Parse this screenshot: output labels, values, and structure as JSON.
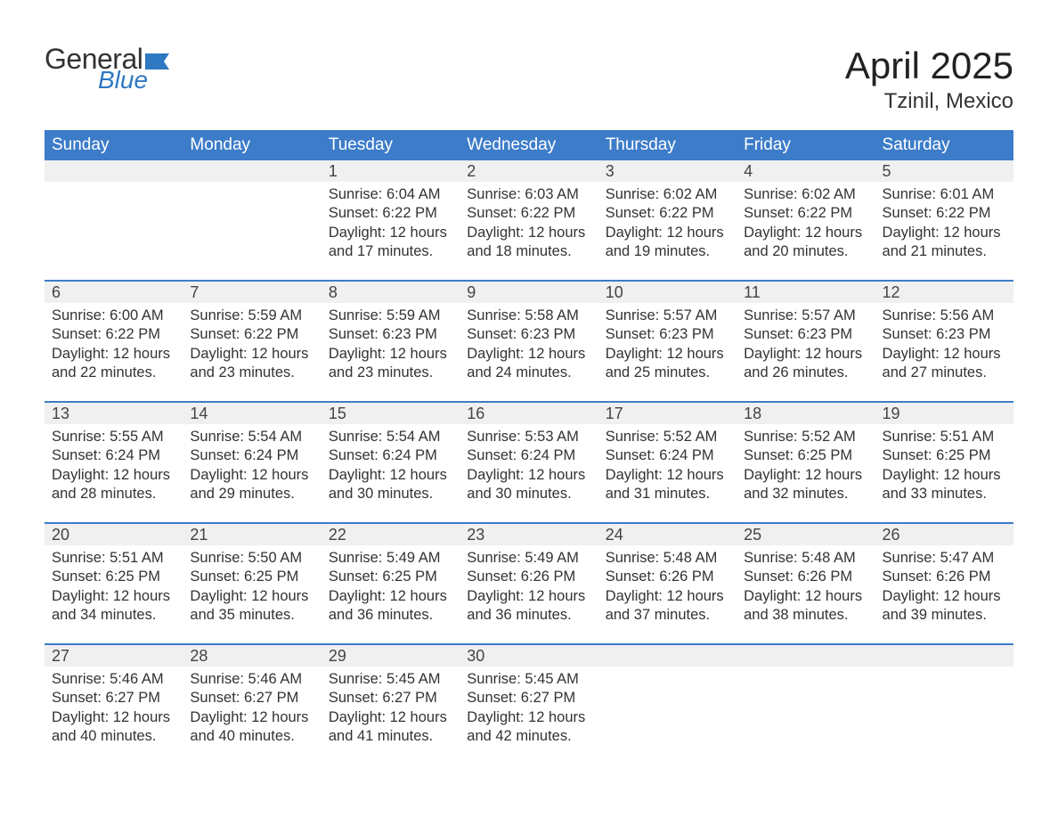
{
  "brand": {
    "general_text": "General",
    "blue_text": "Blue",
    "flag_color": "#2f78c2",
    "text_color": "#333333"
  },
  "title": {
    "month": "April 2025",
    "location": "Tzinil, Mexico"
  },
  "colors": {
    "header_bg": "#3d7cc9",
    "header_text": "#ffffff",
    "week_divider": "#3d7cc9",
    "daynum_bg": "#f0f0f0",
    "body_text": "#333333",
    "page_bg": "#ffffff"
  },
  "day_names": [
    "Sunday",
    "Monday",
    "Tuesday",
    "Wednesday",
    "Thursday",
    "Friday",
    "Saturday"
  ],
  "weeks": [
    [
      null,
      null,
      {
        "n": "1",
        "sunrise": "Sunrise: 6:04 AM",
        "sunset": "Sunset: 6:22 PM",
        "dl1": "Daylight: 12 hours",
        "dl2": "and 17 minutes."
      },
      {
        "n": "2",
        "sunrise": "Sunrise: 6:03 AM",
        "sunset": "Sunset: 6:22 PM",
        "dl1": "Daylight: 12 hours",
        "dl2": "and 18 minutes."
      },
      {
        "n": "3",
        "sunrise": "Sunrise: 6:02 AM",
        "sunset": "Sunset: 6:22 PM",
        "dl1": "Daylight: 12 hours",
        "dl2": "and 19 minutes."
      },
      {
        "n": "4",
        "sunrise": "Sunrise: 6:02 AM",
        "sunset": "Sunset: 6:22 PM",
        "dl1": "Daylight: 12 hours",
        "dl2": "and 20 minutes."
      },
      {
        "n": "5",
        "sunrise": "Sunrise: 6:01 AM",
        "sunset": "Sunset: 6:22 PM",
        "dl1": "Daylight: 12 hours",
        "dl2": "and 21 minutes."
      }
    ],
    [
      {
        "n": "6",
        "sunrise": "Sunrise: 6:00 AM",
        "sunset": "Sunset: 6:22 PM",
        "dl1": "Daylight: 12 hours",
        "dl2": "and 22 minutes."
      },
      {
        "n": "7",
        "sunrise": "Sunrise: 5:59 AM",
        "sunset": "Sunset: 6:22 PM",
        "dl1": "Daylight: 12 hours",
        "dl2": "and 23 minutes."
      },
      {
        "n": "8",
        "sunrise": "Sunrise: 5:59 AM",
        "sunset": "Sunset: 6:23 PM",
        "dl1": "Daylight: 12 hours",
        "dl2": "and 23 minutes."
      },
      {
        "n": "9",
        "sunrise": "Sunrise: 5:58 AM",
        "sunset": "Sunset: 6:23 PM",
        "dl1": "Daylight: 12 hours",
        "dl2": "and 24 minutes."
      },
      {
        "n": "10",
        "sunrise": "Sunrise: 5:57 AM",
        "sunset": "Sunset: 6:23 PM",
        "dl1": "Daylight: 12 hours",
        "dl2": "and 25 minutes."
      },
      {
        "n": "11",
        "sunrise": "Sunrise: 5:57 AM",
        "sunset": "Sunset: 6:23 PM",
        "dl1": "Daylight: 12 hours",
        "dl2": "and 26 minutes."
      },
      {
        "n": "12",
        "sunrise": "Sunrise: 5:56 AM",
        "sunset": "Sunset: 6:23 PM",
        "dl1": "Daylight: 12 hours",
        "dl2": "and 27 minutes."
      }
    ],
    [
      {
        "n": "13",
        "sunrise": "Sunrise: 5:55 AM",
        "sunset": "Sunset: 6:24 PM",
        "dl1": "Daylight: 12 hours",
        "dl2": "and 28 minutes."
      },
      {
        "n": "14",
        "sunrise": "Sunrise: 5:54 AM",
        "sunset": "Sunset: 6:24 PM",
        "dl1": "Daylight: 12 hours",
        "dl2": "and 29 minutes."
      },
      {
        "n": "15",
        "sunrise": "Sunrise: 5:54 AM",
        "sunset": "Sunset: 6:24 PM",
        "dl1": "Daylight: 12 hours",
        "dl2": "and 30 minutes."
      },
      {
        "n": "16",
        "sunrise": "Sunrise: 5:53 AM",
        "sunset": "Sunset: 6:24 PM",
        "dl1": "Daylight: 12 hours",
        "dl2": "and 30 minutes."
      },
      {
        "n": "17",
        "sunrise": "Sunrise: 5:52 AM",
        "sunset": "Sunset: 6:24 PM",
        "dl1": "Daylight: 12 hours",
        "dl2": "and 31 minutes."
      },
      {
        "n": "18",
        "sunrise": "Sunrise: 5:52 AM",
        "sunset": "Sunset: 6:25 PM",
        "dl1": "Daylight: 12 hours",
        "dl2": "and 32 minutes."
      },
      {
        "n": "19",
        "sunrise": "Sunrise: 5:51 AM",
        "sunset": "Sunset: 6:25 PM",
        "dl1": "Daylight: 12 hours",
        "dl2": "and 33 minutes."
      }
    ],
    [
      {
        "n": "20",
        "sunrise": "Sunrise: 5:51 AM",
        "sunset": "Sunset: 6:25 PM",
        "dl1": "Daylight: 12 hours",
        "dl2": "and 34 minutes."
      },
      {
        "n": "21",
        "sunrise": "Sunrise: 5:50 AM",
        "sunset": "Sunset: 6:25 PM",
        "dl1": "Daylight: 12 hours",
        "dl2": "and 35 minutes."
      },
      {
        "n": "22",
        "sunrise": "Sunrise: 5:49 AM",
        "sunset": "Sunset: 6:25 PM",
        "dl1": "Daylight: 12 hours",
        "dl2": "and 36 minutes."
      },
      {
        "n": "23",
        "sunrise": "Sunrise: 5:49 AM",
        "sunset": "Sunset: 6:26 PM",
        "dl1": "Daylight: 12 hours",
        "dl2": "and 36 minutes."
      },
      {
        "n": "24",
        "sunrise": "Sunrise: 5:48 AM",
        "sunset": "Sunset: 6:26 PM",
        "dl1": "Daylight: 12 hours",
        "dl2": "and 37 minutes."
      },
      {
        "n": "25",
        "sunrise": "Sunrise: 5:48 AM",
        "sunset": "Sunset: 6:26 PM",
        "dl1": "Daylight: 12 hours",
        "dl2": "and 38 minutes."
      },
      {
        "n": "26",
        "sunrise": "Sunrise: 5:47 AM",
        "sunset": "Sunset: 6:26 PM",
        "dl1": "Daylight: 12 hours",
        "dl2": "and 39 minutes."
      }
    ],
    [
      {
        "n": "27",
        "sunrise": "Sunrise: 5:46 AM",
        "sunset": "Sunset: 6:27 PM",
        "dl1": "Daylight: 12 hours",
        "dl2": "and 40 minutes."
      },
      {
        "n": "28",
        "sunrise": "Sunrise: 5:46 AM",
        "sunset": "Sunset: 6:27 PM",
        "dl1": "Daylight: 12 hours",
        "dl2": "and 40 minutes."
      },
      {
        "n": "29",
        "sunrise": "Sunrise: 5:45 AM",
        "sunset": "Sunset: 6:27 PM",
        "dl1": "Daylight: 12 hours",
        "dl2": "and 41 minutes."
      },
      {
        "n": "30",
        "sunrise": "Sunrise: 5:45 AM",
        "sunset": "Sunset: 6:27 PM",
        "dl1": "Daylight: 12 hours",
        "dl2": "and 42 minutes."
      },
      null,
      null,
      null
    ]
  ]
}
